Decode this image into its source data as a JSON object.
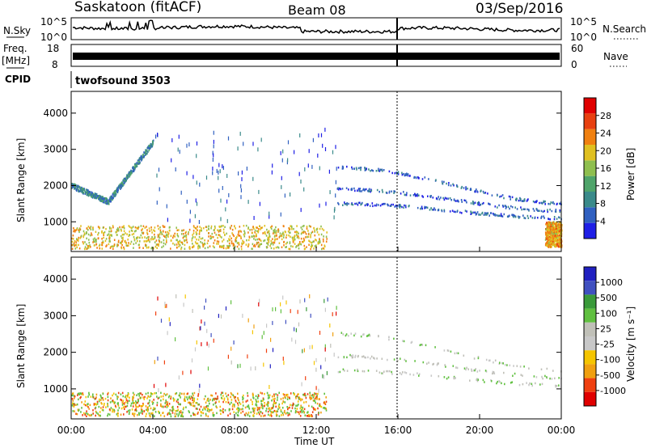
{
  "header": {
    "title": "Saskatoon (fitACF)",
    "beam": "Beam 08",
    "date": "03/Sep/2016"
  },
  "param_panels": {
    "nsky_label": "N.Sky",
    "nsearch_label": "N.Search",
    "freq_label_1": "Freq.",
    "freq_label_2": "[MHz]",
    "nave_label": "Nave",
    "cpid_label": "CPID",
    "noise_ticks_left": [
      "10^5",
      "10^0"
    ],
    "noise_ticks_right": [
      "10^5",
      "10^0"
    ],
    "freq_ticks": [
      "18",
      "8"
    ],
    "nave_ticks": [
      "60",
      "0"
    ],
    "cpid_value": "twofsound 3503"
  },
  "colors": {
    "power_scale": [
      "#1f1fe6",
      "#3060c0",
      "#3a8a8a",
      "#4fa46a",
      "#8fbf4f",
      "#e0c020",
      "#f08010",
      "#e84010",
      "#e00000"
    ],
    "velocity_scale": [
      "#e00000",
      "#f04010",
      "#f0a010",
      "#f5c500",
      "#c8c8c8",
      "#c0c0b8",
      "#60c040",
      "#3a9a3a",
      "#4050c0",
      "#2020c0"
    ]
  },
  "chart_data": [
    {
      "type": "heatmap",
      "name": "power",
      "ylabel": "Slant Range [km]",
      "ylim": [
        180,
        4600
      ],
      "yticks": [
        1000,
        2000,
        3000,
        4000
      ],
      "xlim": [
        0,
        24
      ],
      "colorbar_label": "Power [dB]",
      "colorbar_ticks": [
        "4",
        "8",
        "12",
        "16",
        "20",
        "24",
        "28"
      ],
      "features": [
        {
          "desc": "near-range band",
          "x_start": 0.0,
          "x_end": 12.5,
          "range_km": [
            250,
            900
          ],
          "power_db": 22
        },
        {
          "desc": "morning arc",
          "x_start": 0.0,
          "x_end": 4.0,
          "range_km_start": 2000,
          "range_km_min": 1550,
          "range_km_end": 3200,
          "power_db": 10
        },
        {
          "desc": "evening echoes",
          "x_start": 13.0,
          "x_end": 24.0,
          "range_km": [
            1200,
            3200
          ],
          "power_db": 6
        },
        {
          "desc": "late near-range",
          "x_start": 23.2,
          "x_end": 24.0,
          "range_km": [
            300,
            1000
          ],
          "power_db": 24
        }
      ]
    },
    {
      "type": "heatmap",
      "name": "velocity",
      "ylabel": "Slant Range [km]",
      "xlabel": "Time UT",
      "ylim": [
        180,
        4600
      ],
      "yticks": [
        1000,
        2000,
        3000,
        4000
      ],
      "xlim": [
        0,
        24
      ],
      "xticks": [
        "00:00",
        "04:00",
        "08:00",
        "12:00",
        "16:00",
        "20:00",
        "00:00"
      ],
      "colorbar_label": "Velocity [m s⁻¹]",
      "colorbar_ticks": [
        "1000",
        "500",
        "100",
        "25",
        "-25",
        "-100",
        "-500",
        "-1000"
      ],
      "features": [
        {
          "desc": "near-range band",
          "x_start": 0.0,
          "x_end": 12.5,
          "range_km": [
            250,
            900
          ],
          "velocity_ms": -200
        },
        {
          "desc": "arcs",
          "x_start": 0.0,
          "x_end": 24.0,
          "range_km": [
            1200,
            3200
          ],
          "velocity_ms": 0
        }
      ]
    }
  ]
}
